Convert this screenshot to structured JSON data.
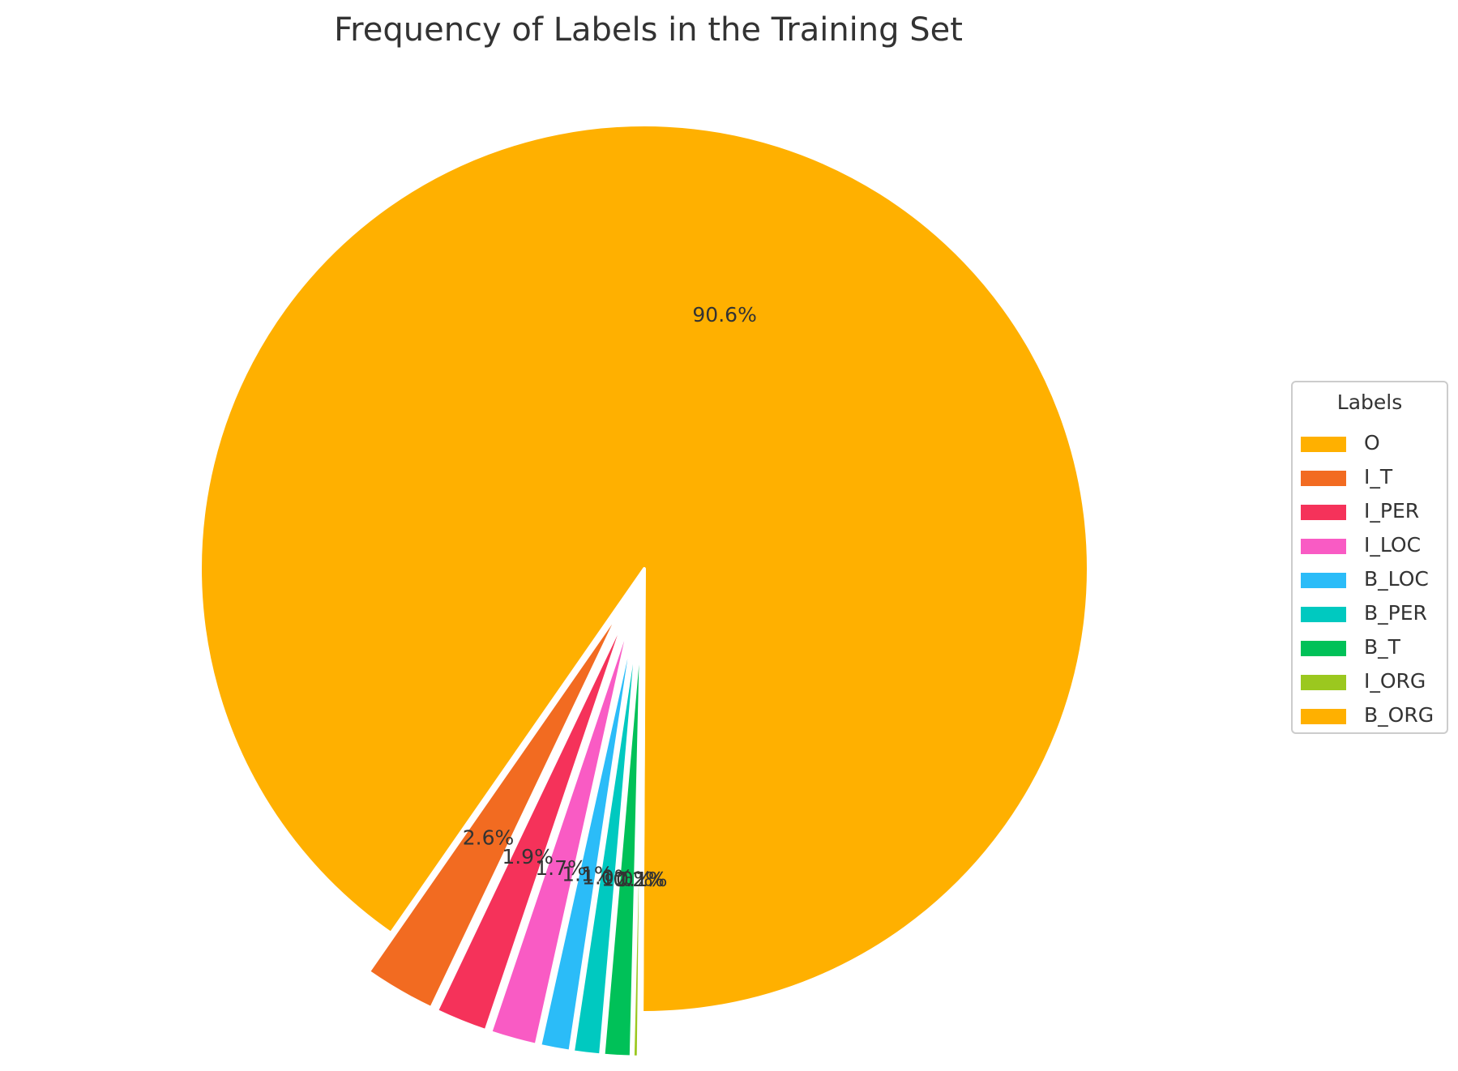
{
  "chart_data": {
    "type": "pie",
    "title": "Frequency of Labels in the Training Set",
    "legend_title": "Labels",
    "legend_position": "right",
    "slices": [
      {
        "label": "O",
        "value": 90.6,
        "pct_label": "90.6%",
        "color": "#ffb000",
        "exploded": false
      },
      {
        "label": "I_T",
        "value": 2.6,
        "pct_label": "2.6%",
        "color": "#f26b21",
        "exploded": true
      },
      {
        "label": "I_PER",
        "value": 1.9,
        "pct_label": "1.9%",
        "color": "#f5325a",
        "exploded": true
      },
      {
        "label": "I_LOC",
        "value": 1.7,
        "pct_label": "1.7%",
        "color": "#f95bc4",
        "exploded": true
      },
      {
        "label": "B_LOC",
        "value": 1.1,
        "pct_label": "1.1%",
        "color": "#2bbcf8",
        "exploded": true
      },
      {
        "label": "B_PER",
        "value": 1.0,
        "pct_label": "1.0%",
        "color": "#00c9c0",
        "exploded": true
      },
      {
        "label": "B_T",
        "value": 1.0,
        "pct_label": "1.0%",
        "color": "#00c158",
        "exploded": true
      },
      {
        "label": "I_ORG",
        "value": 0.2,
        "pct_label": "0.2%",
        "color": "#9bc81f",
        "exploded": true
      },
      {
        "label": "B_ORG",
        "value": 0.1,
        "pct_label": "0.1%",
        "color": "#ffb000",
        "exploded": true
      }
    ]
  }
}
